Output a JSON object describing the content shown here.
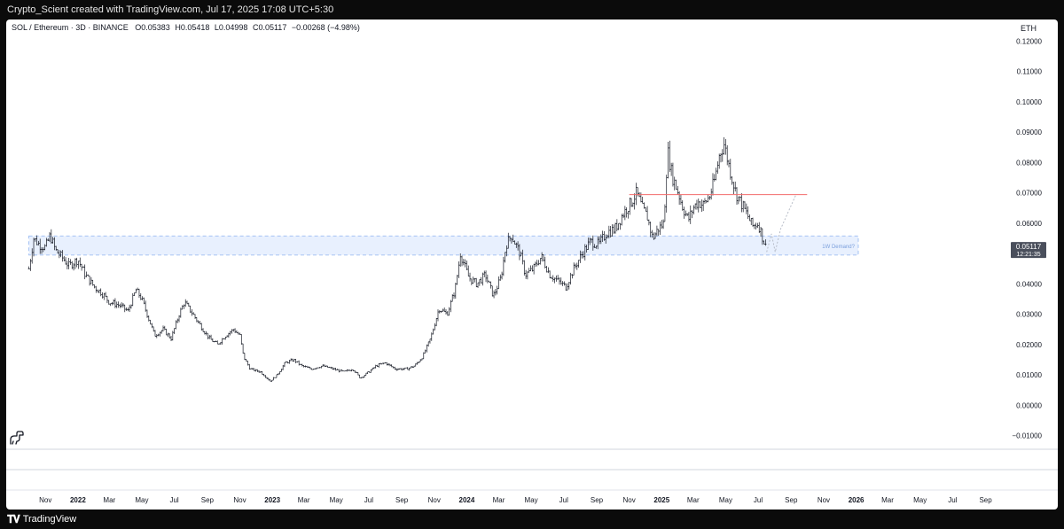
{
  "header": {
    "attribution": "Crypto_Scient created with TradingView.com, Jul 17, 2025 17:08 UTC+5:30"
  },
  "legend": {
    "symbol": "SOL / Ethereum · 3D · BINANCE",
    "o_label": "O",
    "o_value": "0.05383",
    "h_label": "H",
    "h_value": "0.05418",
    "l_label": "L",
    "l_value": "0.04998",
    "c_label": "C",
    "c_value": "0.05117",
    "change": "−0.00268 (−4.98%)"
  },
  "currency": "ETH",
  "price_tag": {
    "price": "0.05117",
    "countdown": "12:21:35"
  },
  "zone_label": "1W Demand?",
  "footer": {
    "brand": "TradingView"
  },
  "colors": {
    "bars": "#131722",
    "zone_fill": "#e8f0fe",
    "zone_border": "#90b4f0",
    "resistance": "#f26b6b",
    "projection": "#b0b6c2",
    "tag_bg": "#4a4f5c"
  },
  "chart_data": {
    "type": "bar",
    "title": "SOL / Ethereum · 3D · BINANCE",
    "ylabel": "ETH",
    "ylim": [
      -0.013,
      0.123
    ],
    "y_ticks": [
      "0.12000",
      "0.11000",
      "0.10000",
      "0.09000",
      "0.08000",
      "0.07000",
      "0.06000",
      "0.05000",
      "0.04000",
      "0.03000",
      "0.02000",
      "0.01000",
      "0.00000",
      "−0.01000"
    ],
    "x_ticks": [
      "Nov",
      "2022",
      "Mar",
      "May",
      "Jul",
      "Sep",
      "Nov",
      "2023",
      "Mar",
      "May",
      "Jul",
      "Sep",
      "Nov",
      "2024",
      "Mar",
      "May",
      "Jul",
      "Sep",
      "Nov",
      "2025",
      "Mar",
      "May",
      "Jul",
      "Sep",
      "Nov",
      "2026",
      "Mar",
      "May",
      "Jul",
      "Sep"
    ],
    "series": [
      {
        "values": [
          [
            "2021-10-01",
            0.045
          ],
          [
            "2021-10-10",
            0.055
          ],
          [
            "2021-10-20",
            0.053
          ],
          [
            "2021-11-01",
            0.052
          ],
          [
            "2021-11-10",
            0.056
          ],
          [
            "2021-11-20",
            0.051
          ],
          [
            "2021-12-01",
            0.049
          ],
          [
            "2021-12-15",
            0.046
          ],
          [
            "2022-01-01",
            0.048
          ],
          [
            "2022-01-15",
            0.043
          ],
          [
            "2022-02-01",
            0.039
          ],
          [
            "2022-02-15",
            0.037
          ],
          [
            "2022-03-01",
            0.034
          ],
          [
            "2022-03-20",
            0.033
          ],
          [
            "2022-04-05",
            0.031
          ],
          [
            "2022-04-20",
            0.038
          ],
          [
            "2022-05-01",
            0.035
          ],
          [
            "2022-05-15",
            0.028
          ],
          [
            "2022-05-25",
            0.023
          ],
          [
            "2022-06-10",
            0.025
          ],
          [
            "2022-06-25",
            0.022
          ],
          [
            "2022-07-10",
            0.03
          ],
          [
            "2022-07-20",
            0.034
          ],
          [
            "2022-08-05",
            0.03
          ],
          [
            "2022-08-20",
            0.026
          ],
          [
            "2022-09-05",
            0.022
          ],
          [
            "2022-09-20",
            0.02
          ],
          [
            "2022-10-05",
            0.023
          ],
          [
            "2022-10-20",
            0.025
          ],
          [
            "2022-11-01",
            0.023
          ],
          [
            "2022-11-08",
            0.016
          ],
          [
            "2022-11-20",
            0.012
          ],
          [
            "2022-12-10",
            0.011
          ],
          [
            "2022-12-28",
            0.008
          ],
          [
            "2023-01-10",
            0.01
          ],
          [
            "2023-01-25",
            0.014
          ],
          [
            "2023-02-10",
            0.015
          ],
          [
            "2023-02-25",
            0.013
          ],
          [
            "2023-03-15",
            0.012
          ],
          [
            "2023-04-05",
            0.013
          ],
          [
            "2023-04-25",
            0.012
          ],
          [
            "2023-05-15",
            0.011
          ],
          [
            "2023-06-01",
            0.012
          ],
          [
            "2023-06-15",
            0.009
          ],
          [
            "2023-07-01",
            0.011
          ],
          [
            "2023-07-15",
            0.013
          ],
          [
            "2023-08-01",
            0.014
          ],
          [
            "2023-08-20",
            0.012
          ],
          [
            "2023-09-10",
            0.012
          ],
          [
            "2023-09-25",
            0.013
          ],
          [
            "2023-10-10",
            0.016
          ],
          [
            "2023-10-25",
            0.022
          ],
          [
            "2023-11-10",
            0.032
          ],
          [
            "2023-11-25",
            0.03
          ],
          [
            "2023-12-10",
            0.038
          ],
          [
            "2023-12-20",
            0.05
          ],
          [
            "2024-01-05",
            0.042
          ],
          [
            "2024-01-20",
            0.04
          ],
          [
            "2024-02-05",
            0.043
          ],
          [
            "2024-02-20",
            0.036
          ],
          [
            "2024-03-05",
            0.042
          ],
          [
            "2024-03-15",
            0.053
          ],
          [
            "2024-03-25",
            0.056
          ],
          [
            "2024-04-10",
            0.05
          ],
          [
            "2024-04-20",
            0.043
          ],
          [
            "2024-05-05",
            0.045
          ],
          [
            "2024-05-20",
            0.049
          ],
          [
            "2024-06-05",
            0.043
          ],
          [
            "2024-06-20",
            0.041
          ],
          [
            "2024-07-05",
            0.039
          ],
          [
            "2024-07-20",
            0.045
          ],
          [
            "2024-08-05",
            0.05
          ],
          [
            "2024-08-20",
            0.054
          ],
          [
            "2024-09-05",
            0.053
          ],
          [
            "2024-09-20",
            0.057
          ],
          [
            "2024-10-05",
            0.058
          ],
          [
            "2024-10-20",
            0.063
          ],
          [
            "2024-11-05",
            0.067
          ],
          [
            "2024-11-15",
            0.07
          ],
          [
            "2024-11-25",
            0.065
          ],
          [
            "2024-12-05",
            0.062
          ],
          [
            "2024-12-15",
            0.055
          ],
          [
            "2024-12-25",
            0.058
          ],
          [
            "2025-01-05",
            0.06
          ],
          [
            "2025-01-12",
            0.084
          ],
          [
            "2025-01-20",
            0.076
          ],
          [
            "2025-02-01",
            0.07
          ],
          [
            "2025-02-10",
            0.065
          ],
          [
            "2025-02-20",
            0.061
          ],
          [
            "2025-03-01",
            0.065
          ],
          [
            "2025-03-10",
            0.067
          ],
          [
            "2025-03-20",
            0.066
          ],
          [
            "2025-04-01",
            0.069
          ],
          [
            "2025-04-10",
            0.074
          ],
          [
            "2025-04-20",
            0.083
          ],
          [
            "2025-04-28",
            0.086
          ],
          [
            "2025-05-10",
            0.077
          ],
          [
            "2025-05-20",
            0.07
          ],
          [
            "2025-06-01",
            0.066
          ],
          [
            "2025-06-10",
            0.063
          ],
          [
            "2025-06-20",
            0.059
          ],
          [
            "2025-07-01",
            0.06
          ],
          [
            "2025-07-10",
            0.055
          ],
          [
            "2025-07-17",
            0.05117
          ]
        ]
      }
    ],
    "annotations": {
      "demand_zone": {
        "label": "1W Demand?",
        "y_low": 0.0495,
        "y_high": 0.0558,
        "x_start": "2021-10-01",
        "x_end": "2026-01-05"
      },
      "resistance_line": {
        "y": 0.0694,
        "x_start": "2024-11-01",
        "x_end": "2025-10-01"
      },
      "projection": {
        "points": [
          [
            "2025-07-17",
            0.0505
          ],
          [
            "2025-07-26",
            0.0565
          ],
          [
            "2025-08-02",
            0.0505
          ],
          [
            "2025-08-12",
            0.058
          ],
          [
            "2025-09-10",
            0.0694
          ]
        ]
      },
      "last_price": 0.05117
    }
  }
}
